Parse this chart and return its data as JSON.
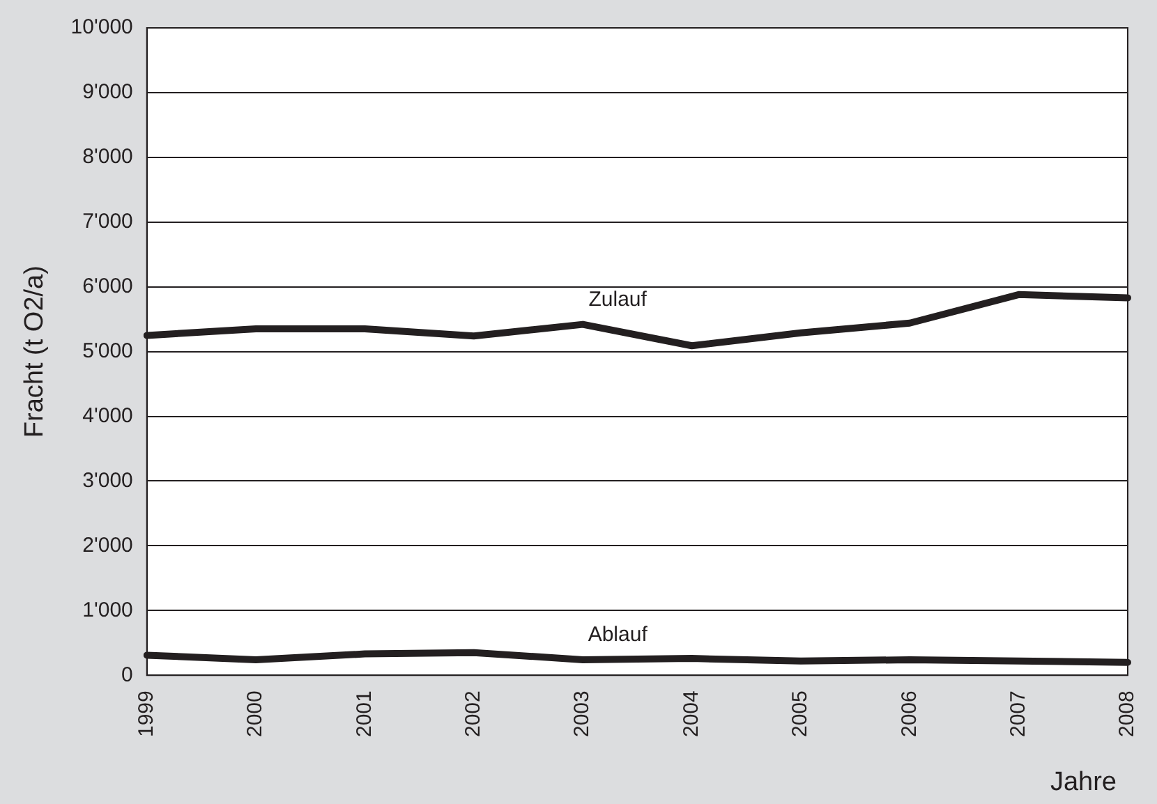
{
  "chart_data": {
    "type": "line",
    "xlabel": "Jahre",
    "ylabel": "Fracht (t O2/a)",
    "categories": [
      "1999",
      "2000",
      "2001",
      "2002",
      "2003",
      "2004",
      "2005",
      "2006",
      "2007",
      "2008"
    ],
    "series": [
      {
        "name": "Zulauf",
        "color": "#231f20",
        "values": [
          5250,
          5350,
          5350,
          5240,
          5420,
          5090,
          5290,
          5440,
          5880,
          5830
        ]
      },
      {
        "name": "Ablauf",
        "color": "#231f20",
        "values": [
          310,
          240,
          330,
          350,
          240,
          260,
          220,
          240,
          220,
          200
        ]
      }
    ],
    "ylim": [
      0,
      10000
    ],
    "yticks": [
      {
        "value": 0,
        "label": "0"
      },
      {
        "value": 1000,
        "label": "1'000"
      },
      {
        "value": 2000,
        "label": "2'000"
      },
      {
        "value": 3000,
        "label": "3'000"
      },
      {
        "value": 4000,
        "label": "4'000"
      },
      {
        "value": 5000,
        "label": "5'000"
      },
      {
        "value": 6000,
        "label": "6'000"
      },
      {
        "value": 7000,
        "label": "7'000"
      },
      {
        "value": 8000,
        "label": "8'000"
      },
      {
        "value": 9000,
        "label": "9'000"
      },
      {
        "value": 10000,
        "label": "10'000"
      }
    ],
    "grid": "y",
    "legend": false,
    "marker": "none",
    "line_style": "solid"
  }
}
